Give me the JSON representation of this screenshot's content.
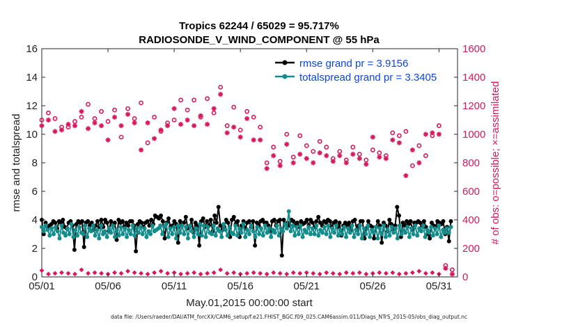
{
  "chart_data": {
    "type": "line",
    "title_line1": "Tropics 62244 / 65029 = 95.717%",
    "title_line2": "RADIOSONDE_V_WIND_COMPONENT @ 55 hPa",
    "xlabel": "May.01,2015 00:00:00 start",
    "ylabel_left": "rmse and totalspread",
    "ylabel_right": "# of obs: o=possible; ×=assimilated",
    "xlim": [
      0,
      31.4
    ],
    "ylim_left": [
      0,
      16
    ],
    "ylim_right": [
      0,
      1600
    ],
    "x_ticks": [
      0,
      5,
      10,
      15,
      20,
      25,
      30
    ],
    "x_tick_labels": [
      "05/01",
      "05/06",
      "05/11",
      "05/16",
      "05/21",
      "05/26",
      "05/31"
    ],
    "y_ticks_left": [
      0,
      2,
      4,
      6,
      8,
      10,
      12,
      14,
      16
    ],
    "y_tick_labels_left": [
      "0",
      "2",
      "4",
      "6",
      "8",
      "10",
      "12",
      "14",
      "16"
    ],
    "y_ticks_right": [
      0,
      200,
      400,
      600,
      800,
      1000,
      1200,
      1400,
      1600
    ],
    "y_tick_labels_right": [
      "0",
      "200",
      "400",
      "600",
      "800",
      "1000",
      "1200",
      "1400",
      "1600"
    ],
    "legend": [
      "rmse grand pr = 3.9156",
      "totalspread grand pr = 3.3405"
    ],
    "colors": {
      "rmse": "#000000",
      "spread": "#148c8c",
      "obs": "#d7185c"
    },
    "series": [
      {
        "name": "rmse",
        "axis": "left",
        "values": [
          4.0,
          3.0,
          3.8,
          3.5,
          3.6,
          3.7,
          3.9,
          3.8,
          3.4,
          3.9,
          3.8,
          4.0,
          3.5,
          3.4,
          3.8,
          3.9,
          3.6,
          1.9,
          3.7,
          3.9,
          3.8,
          3.9,
          2.1,
          3.8,
          3.9,
          3.6,
          3.8,
          3.3,
          3.6,
          3.9,
          3.5,
          4.0,
          3.5,
          4.0,
          3.8,
          3.2,
          3.9,
          3.6,
          3.8,
          2.6,
          4.0,
          3.8,
          3.9,
          3.5,
          3.8,
          3.6,
          3.9,
          3.9,
          3.6,
          1.8,
          3.7,
          3.9,
          3.8,
          3.5,
          3.8,
          3.9,
          3.6,
          4.0,
          3.7,
          4.3,
          4.2,
          4.1,
          4.3,
          3.9,
          2.7,
          3.8,
          4.1,
          3.5,
          3.6,
          3.9,
          3.7,
          2.4,
          3.9,
          3.6,
          3.8,
          4.2,
          3.4,
          3.5,
          4.0,
          3.1,
          3.8,
          3.6,
          2.2,
          3.9,
          4.1,
          3.5,
          3.9,
          3.6,
          4.0,
          3.2,
          4.3,
          3.8,
          4.9,
          3.6,
          3.3,
          3.5,
          4.0,
          3.8,
          2.8,
          4.0,
          4.2,
          3.7,
          3.9,
          2.8,
          3.6,
          3.9,
          3.4,
          3.8,
          3.9,
          3.5,
          3.9,
          2.2,
          3.8,
          3.6,
          3.9,
          4.0,
          3.8,
          3.8,
          3.6,
          3.2,
          3.9,
          4.0,
          3.6,
          3.9,
          4.0,
          1.5,
          4.0,
          3.7,
          3.8,
          3.6,
          4.0,
          3.9,
          3.6,
          3.8,
          3.5,
          3.9,
          3.7,
          3.8,
          4.0,
          3.6,
          4.0,
          3.8,
          3.5,
          3.9,
          4.2,
          3.8,
          3.6,
          3.9,
          3.8,
          4.0,
          3.9,
          3.5,
          3.8,
          3.9,
          3.5,
          3.8,
          2.9,
          3.6,
          3.8,
          3.6,
          3.8,
          3.3,
          3.9,
          4.0,
          3.3,
          3.6,
          3.9,
          3.9,
          2.7,
          3.4,
          3.9,
          3.6,
          3.5,
          2.7,
          3.5,
          3.9,
          3.6,
          2.4,
          3.8,
          3.6,
          3.2,
          4.0,
          3.7,
          3.3,
          3.6,
          4.9,
          4.3,
          2.8,
          3.8,
          3.6,
          3.9,
          3.7,
          3.9,
          3.3,
          3.8,
          3.8,
          3.9,
          3.8,
          3.6,
          3.9,
          3.5,
          3.0,
          2.7,
          3.8,
          3.6,
          3.5,
          3.9,
          3.8,
          3.7,
          3.9,
          3.0,
          3.5,
          2.5,
          3.9
        ]
      },
      {
        "name": "totalspread",
        "axis": "left",
        "values": [
          3.5,
          3.2,
          3.6,
          3.3,
          2.9,
          3.4,
          3.0,
          3.5,
          3.2,
          2.7,
          3.6,
          3.1,
          2.9,
          3.4,
          3.0,
          3.7,
          2.8,
          3.3,
          2.9,
          3.5,
          3.1,
          3.0,
          3.6,
          2.8,
          3.4,
          3.2,
          3.6,
          2.9,
          3.3,
          2.7,
          3.6,
          3.0,
          3.2,
          2.8,
          3.4,
          3.1,
          3.6,
          2.8,
          3.3,
          2.9,
          3.5,
          3.0,
          3.4,
          2.8,
          3.3,
          3.0,
          3.6,
          2.9,
          3.4,
          3.1,
          3.5,
          3.0,
          3.4,
          2.8,
          3.2,
          3.0,
          3.6,
          3.2,
          3.3,
          3.4,
          3.6,
          3.0,
          3.5,
          3.7,
          2.8,
          3.4,
          3.0,
          3.5,
          2.7,
          3.6,
          3.1,
          3.6,
          3.0,
          3.5,
          2.7,
          3.6,
          3.2,
          2.8,
          3.4,
          3.0,
          3.7,
          2.9,
          3.6,
          2.8,
          3.5,
          3.1,
          3.0,
          3.6,
          2.9,
          3.4,
          3.2,
          2.8,
          3.7,
          3.3,
          2.9,
          3.5,
          3.1,
          3.0,
          3.6,
          2.9,
          3.4,
          3.1,
          3.7,
          2.8,
          3.3,
          3.0,
          3.6,
          3.2,
          2.8,
          3.5,
          3.0,
          3.4,
          2.9,
          3.6,
          3.1,
          3.4,
          2.8,
          3.3,
          3.1,
          3.6,
          2.9,
          3.4,
          3.2,
          3.7,
          3.4,
          4.6,
          3.2,
          3.6,
          2.9,
          3.5,
          3.0,
          3.6,
          2.8,
          3.3,
          3.1,
          3.5,
          3.0,
          3.4,
          3.0,
          3.6,
          2.9,
          3.3,
          3.1,
          3.5,
          3.0,
          3.6,
          2.8,
          3.4,
          3.1,
          3.6,
          2.9,
          3.3,
          3.0,
          3.5,
          2.8,
          3.4,
          3.1,
          3.6,
          2.8,
          3.3,
          3.0,
          3.6,
          2.7,
          3.4,
          3.0,
          3.6,
          2.8,
          3.3,
          3.1,
          3.5,
          2.7,
          3.4,
          3.0,
          3.6,
          2.8,
          3.3,
          2.9,
          3.5,
          3.1,
          3.4,
          2.7,
          3.6,
          3.0,
          3.3,
          3.1,
          3.5,
          2.8,
          3.4,
          3.0,
          3.6,
          2.9,
          3.4,
          3.2,
          3.6,
          2.8,
          3.3,
          3.1,
          3.5,
          2.9,
          3.4,
          3.0,
          3.6,
          2.8,
          3.3,
          3.1,
          3.4,
          3.1,
          3.5
        ]
      },
      {
        "name": "possible",
        "axis": "right",
        "marker": "o",
        "x": [
          0.0,
          0.5,
          1.0,
          1.5,
          2.0,
          2.5,
          3.0,
          3.5,
          4.0,
          4.5,
          5.0,
          5.5,
          6.0,
          6.5,
          7.0,
          7.5,
          8.0,
          8.5,
          9.0,
          9.5,
          10.0,
          10.5,
          11.0,
          11.5,
          12.0,
          12.5,
          13.0,
          13.5,
          14.0,
          14.5,
          15.0,
          15.5,
          16.0,
          16.5,
          17.0,
          17.5,
          18.0,
          18.5,
          19.0,
          19.5,
          20.0,
          20.5,
          21.0,
          21.5,
          22.0,
          22.5,
          23.0,
          23.5,
          24.0,
          24.5,
          25.0,
          25.5,
          26.0,
          26.5,
          27.0,
          27.5,
          28.0,
          28.5,
          29.0,
          29.5,
          30.0,
          30.5,
          31.0
        ],
        "values": [
          1100,
          1150,
          1110,
          1050,
          1050,
          1090,
          1120,
          1210,
          1110,
          1160,
          1090,
          1170,
          980,
          1180,
          1110,
          1220,
          940,
          1120,
          1020,
          1080,
          1100,
          1240,
          1170,
          1240,
          1120,
          1250,
          1150,
          1330,
          1060,
          1190,
          1030,
          1160,
          1120,
          1050,
          800,
          910,
          810,
          1000,
          840,
          990,
          920,
          880,
          950,
          910,
          830,
          880,
          820,
          910,
          860,
          820,
          890,
          870,
          850,
          1010,
          990,
          1020,
          780,
          920,
          850,
          990,
          1060,
          80,
          50
        ]
      },
      {
        "name": "assimilated",
        "axis": "right",
        "marker": "x",
        "x": [
          0.0,
          0.5,
          1.0,
          1.5,
          2.0,
          2.5,
          3.0,
          3.5,
          4.0,
          4.5,
          5.0,
          5.5,
          6.0,
          6.5,
          7.0,
          7.5,
          8.0,
          8.5,
          9.0,
          9.5,
          10.0,
          10.5,
          11.0,
          11.5,
          12.0,
          12.5,
          13.0,
          13.5,
          14.0,
          14.5,
          15.0,
          15.5,
          16.0,
          16.5,
          17.0,
          17.5,
          18.0,
          18.5,
          19.0,
          19.5,
          20.0,
          20.5,
          21.0,
          21.5,
          22.0,
          22.5,
          23.0,
          23.5,
          24.0,
          24.5,
          25.0,
          25.5,
          26.0,
          26.5,
          27.0,
          27.5,
          28.0,
          28.5,
          29.0,
          29.5,
          30.0,
          30.5,
          31.0
        ],
        "values": [
          1060,
          1100,
          1020,
          1030,
          1070,
          1060,
          1160,
          1040,
          1080,
          1060,
          960,
          1120,
          1060,
          1140,
          1080,
          890,
          1080,
          970,
          1030,
          1060,
          1180,
          1070,
          1100,
          1060,
          1130,
          1070,
          1180,
          1280,
          1010,
          1050,
          980,
          1110,
          960,
          960,
          760,
          850,
          780,
          930,
          800,
          860,
          830,
          800,
          870,
          850,
          810,
          850,
          800,
          860,
          830,
          790,
          980,
          840,
          830,
          960,
          940,
          710,
          890,
          800,
          1000,
          1010,
          1000,
          60,
          20
        ]
      },
      {
        "name": "assimilated-bottom",
        "axis": "right",
        "marker": "diamond",
        "x": [
          0.0,
          0.5,
          1.0,
          1.5,
          2.0,
          2.5,
          3.0,
          3.5,
          4.0,
          4.5,
          5.0,
          5.5,
          6.0,
          6.5,
          7.0,
          7.5,
          8.0,
          8.5,
          9.0,
          9.5,
          10.0,
          10.5,
          11.0,
          11.5,
          12.0,
          12.5,
          13.0,
          13.5,
          14.0,
          14.5,
          15.0,
          15.5,
          16.0,
          16.5,
          17.0,
          17.5,
          18.0,
          18.5,
          19.0,
          19.5,
          20.0,
          20.5,
          21.0,
          21.5,
          22.0,
          22.5,
          23.0,
          23.5,
          24.0,
          24.5,
          25.0,
          25.5,
          26.0,
          26.5,
          27.0,
          27.5,
          28.0,
          28.5,
          29.0,
          29.5,
          30.0
        ],
        "values": [
          45,
          20,
          25,
          30,
          25,
          20,
          50,
          25,
          30,
          25,
          20,
          30,
          25,
          40,
          30,
          25,
          20,
          30,
          40,
          25,
          30,
          20,
          25,
          30,
          20,
          25,
          30,
          50,
          25,
          30,
          20,
          25,
          30,
          25,
          20,
          30,
          25,
          20,
          30,
          25,
          30,
          25,
          20,
          30,
          25,
          20,
          30,
          25,
          30,
          20,
          25,
          30,
          25,
          30,
          20,
          25,
          30,
          40,
          25,
          30,
          20
        ]
      }
    ]
  },
  "footer_text": "data file: /Users/raeder/DAI/ATM_forcXX/CAM6_setup/f.e21.FHIST_BGC.f09_025.CAM6assim.011/Diags_NTrS_2015-05/obs_diag_output.nc"
}
